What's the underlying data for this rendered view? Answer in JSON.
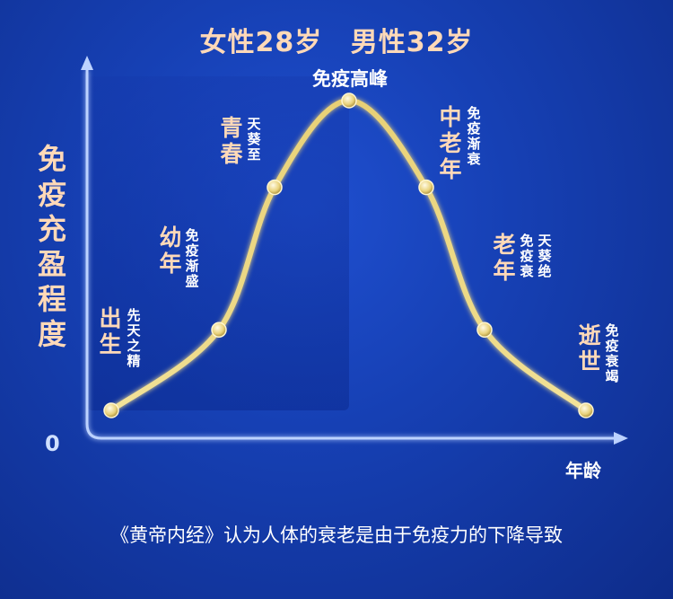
{
  "title": {
    "female": "女性28岁",
    "male": "男性32岁"
  },
  "chart_data": {
    "type": "line",
    "title": "女性28岁  男性32岁",
    "ylabel": "免疫充盈程度",
    "xlabel": "年龄",
    "y_origin_label": "0",
    "grid": false,
    "legend": "none",
    "series": [
      {
        "values": [
          0,
          0.26,
          0.72,
          1.0,
          0.72,
          0.26,
          0
        ]
      }
    ],
    "stages": [
      {
        "name": "出生",
        "note": "先天之精"
      },
      {
        "name": "幼年",
        "note": "免疫渐盛"
      },
      {
        "name": "青春",
        "note": "天葵至"
      },
      {
        "name": "",
        "note": "免疫高峰"
      },
      {
        "name": "中老年",
        "note": "免疫渐衰"
      },
      {
        "name": "老年",
        "note": "天葵绝",
        "note2": "免疫衰"
      },
      {
        "name": "逝世",
        "note": "免疫衰竭"
      }
    ],
    "colors": {
      "curve": "#e9d27a",
      "axis": "#bcd2ff",
      "label": "#ffd9b8"
    }
  },
  "footer": "《黄帝内经》认为人体的衰老是由于免疫力的下降导致"
}
